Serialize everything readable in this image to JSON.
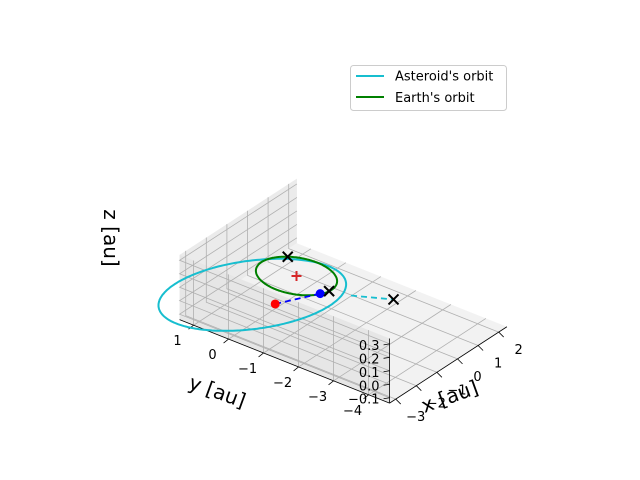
{
  "chart_data": {
    "type": "line",
    "projection": "3d",
    "xlabel": "x [au]",
    "ylabel": "y [au]",
    "zlabel": "z [au]",
    "xlim": [
      -3.3,
      2.4
    ],
    "ylim": [
      -4.6,
      1.4
    ],
    "zlim": [
      -0.14,
      0.34
    ],
    "x_ticks": [
      -3,
      -2,
      -1,
      0,
      1,
      2
    ],
    "x_tick_labels": [
      "−3",
      "−2",
      "−1",
      "0",
      "1",
      "2"
    ],
    "y_ticks": [
      -4,
      -3,
      -2,
      -1,
      0,
      1
    ],
    "y_tick_labels": [
      "−4",
      "−3",
      "−2",
      "−1",
      "0",
      "1"
    ],
    "z_ticks": [
      -0.1,
      0.0,
      0.1,
      0.2,
      0.3
    ],
    "z_tick_labels": [
      "−0.1",
      "0.0",
      "0.1",
      "0.2",
      "0.3"
    ],
    "grid": true,
    "legend_position": "upper right",
    "series": [
      {
        "name": "Asteroid's orbit",
        "color": "#17becf",
        "ellipse": {
          "a": 2.6,
          "e": 0.62,
          "inclination_deg": 3.0,
          "ascending_node_deg": 180,
          "perihelion_arg_deg": 168
        }
      },
      {
        "name": "Earth's orbit",
        "color": "#008000",
        "ellipse": {
          "a": 1.0,
          "e": 0.0,
          "inclination_deg": 0.0,
          "ascending_node_deg": 0,
          "perihelion_arg_deg": 0
        }
      }
    ],
    "markers": [
      {
        "kind": "dot",
        "color": "#0000ff",
        "x": -0.38,
        "y": -0.9,
        "z": 0.0
      },
      {
        "kind": "dot",
        "color": "#ff0000",
        "x": -1.0,
        "y": 0.02,
        "z": -0.11
      },
      {
        "kind": "plus",
        "color": "#d62728",
        "x": 0.0,
        "y": 0.0,
        "z": 0.0
      },
      {
        "kind": "x",
        "color": "#000000",
        "x": 0.73,
        "y": 0.68,
        "z": 0.0
      },
      {
        "kind": "x",
        "color": "#000000",
        "x": -0.1,
        "y": -0.99,
        "z": 0.0
      },
      {
        "kind": "x",
        "color": "#000000",
        "x": 0.7,
        "y": -2.36,
        "z": 0.0
      }
    ],
    "dashed_lines": [
      {
        "color": "#0000ff",
        "from": [
          -1.0,
          0.02,
          -0.11
        ],
        "to": [
          -0.38,
          -0.9,
          0.0
        ]
      },
      {
        "color": "#17becf",
        "from": [
          0.1,
          -1.5,
          0.0
        ],
        "to": [
          0.7,
          -2.36,
          0.0
        ]
      }
    ]
  }
}
